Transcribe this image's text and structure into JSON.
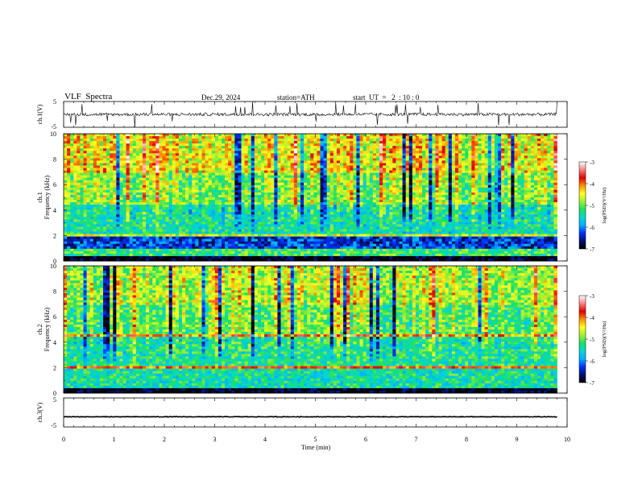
{
  "header": {
    "title": "VLF  Spectra",
    "date": "Dec.29, 2024",
    "station": "station=ATH",
    "start": "start  UT  =   2  : 10 : 0"
  },
  "colors": {
    "colormap": [
      "#000000",
      "#001070",
      "#0030ff",
      "#00b0ff",
      "#00d8d0",
      "#20e060",
      "#a0f030",
      "#ffff20",
      "#ff9000",
      "#e00000",
      "#ff8080",
      "#ffffff"
    ]
  },
  "chart_data": [
    {
      "type": "line",
      "ylabel": "ch.1(V)",
      "yticks": [
        "5",
        "-5"
      ],
      "ylim": [
        -5,
        5
      ],
      "xlim": [
        0,
        10
      ],
      "description_values": {
        "baseline": 0,
        "typical_amplitude": 1.2,
        "spike_max": 5
      },
      "data_extent_min": 9.8
    },
    {
      "type": "heatmap",
      "ylabel": "ch.1\nFrequency  (kHz)",
      "yticks": [
        "0",
        "2",
        "4",
        "6",
        "8",
        "10"
      ],
      "ylim": [
        0,
        10
      ],
      "xlim": [
        0,
        10
      ],
      "data_extent_min": 9.8,
      "colorbar": {
        "label": "log(PSD)(V²/Hz)",
        "ticks": [
          "-3",
          "-4",
          "-5",
          "-6",
          "-7"
        ],
        "range": [
          -7,
          -3
        ]
      },
      "bands": [
        {
          "from_khz": 0.0,
          "to_khz": 0.3,
          "level": -7
        },
        {
          "from_khz": 0.3,
          "to_khz": 0.9,
          "level": -5.2
        },
        {
          "from_khz": 0.9,
          "to_khz": 1.9,
          "level": -6.3
        },
        {
          "from_khz": 1.9,
          "to_khz": 2.2,
          "level": -4.6
        },
        {
          "from_khz": 2.2,
          "to_khz": 4.5,
          "level": -5.4
        },
        {
          "from_khz": 4.5,
          "to_khz": 7.0,
          "level": -4.9
        },
        {
          "from_khz": 7.0,
          "to_khz": 10.0,
          "level": -4.5
        }
      ]
    },
    {
      "type": "heatmap",
      "ylabel": "ch.2\nFrequency  (kHz)",
      "yticks": [
        "0",
        "2",
        "4",
        "6",
        "8",
        "10"
      ],
      "ylim": [
        0,
        10
      ],
      "xlim": [
        0,
        10
      ],
      "data_extent_min": 9.8,
      "colorbar": {
        "label": "log(PSD)(V²/Hz)",
        "ticks": [
          "-3",
          "-4",
          "-5",
          "-6",
          "-7"
        ],
        "range": [
          -7,
          -3
        ]
      },
      "bands": [
        {
          "from_khz": 0.0,
          "to_khz": 0.3,
          "level": -7
        },
        {
          "from_khz": 0.3,
          "to_khz": 1.9,
          "level": -5.4
        },
        {
          "from_khz": 1.9,
          "to_khz": 2.2,
          "level": -3.9
        },
        {
          "from_khz": 2.2,
          "to_khz": 4.4,
          "level": -5.3
        },
        {
          "from_khz": 4.4,
          "to_khz": 4.6,
          "level": -4.0
        },
        {
          "from_khz": 4.6,
          "to_khz": 7.0,
          "level": -5.0
        },
        {
          "from_khz": 7.0,
          "to_khz": 10.0,
          "level": -4.7
        }
      ]
    },
    {
      "type": "line",
      "ylabel": "ch.3(V)",
      "yticks": [
        "5",
        "-5"
      ],
      "ylim": [
        -5,
        5
      ],
      "xlim": [
        0,
        10
      ],
      "xlabel": "Time  (min)",
      "xticks": [
        "0",
        "1",
        "2",
        "3",
        "4",
        "5",
        "6",
        "7",
        "8",
        "9",
        "10"
      ],
      "description_values": {
        "baseline": -1.5,
        "typical_amplitude": 0.2
      },
      "data_extent_min": 9.8
    }
  ]
}
